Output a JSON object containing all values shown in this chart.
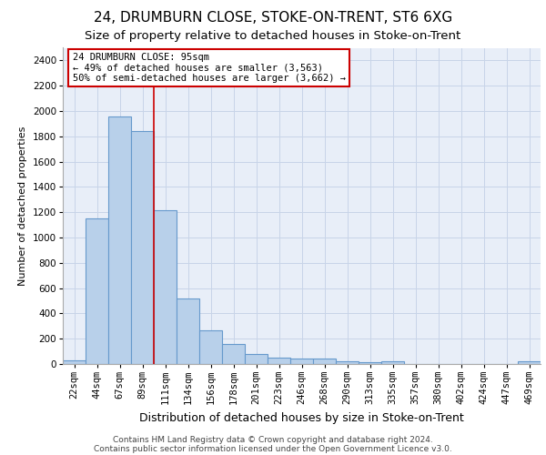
{
  "title1": "24, DRUMBURN CLOSE, STOKE-ON-TRENT, ST6 6XG",
  "title2": "Size of property relative to detached houses in Stoke-on-Trent",
  "xlabel": "Distribution of detached houses by size in Stoke-on-Trent",
  "ylabel": "Number of detached properties",
  "categories": [
    "22sqm",
    "44sqm",
    "67sqm",
    "89sqm",
    "111sqm",
    "134sqm",
    "156sqm",
    "178sqm",
    "201sqm",
    "223sqm",
    "246sqm",
    "268sqm",
    "290sqm",
    "313sqm",
    "335sqm",
    "357sqm",
    "380sqm",
    "402sqm",
    "424sqm",
    "447sqm",
    "469sqm"
  ],
  "values": [
    30,
    1150,
    1960,
    1840,
    1215,
    515,
    265,
    155,
    80,
    50,
    40,
    40,
    20,
    15,
    20,
    0,
    0,
    0,
    0,
    0,
    20
  ],
  "bar_color": "#b8d0ea",
  "bar_edge_color": "#6699cc",
  "bar_linewidth": 0.8,
  "property_line_color": "#cc0000",
  "annotation_line1": "24 DRUMBURN CLOSE: 95sqm",
  "annotation_line2": "← 49% of detached houses are smaller (3,563)",
  "annotation_line3": "50% of semi-detached houses are larger (3,662) →",
  "annotation_box_color": "#cc0000",
  "ylim": [
    0,
    2500
  ],
  "yticks": [
    0,
    200,
    400,
    600,
    800,
    1000,
    1200,
    1400,
    1600,
    1800,
    2000,
    2200,
    2400
  ],
  "grid_color": "#c8d4e8",
  "background_color": "#e8eef8",
  "footer_line1": "Contains HM Land Registry data © Crown copyright and database right 2024.",
  "footer_line2": "Contains public sector information licensed under the Open Government Licence v3.0.",
  "title1_fontsize": 11,
  "title2_fontsize": 9.5,
  "xlabel_fontsize": 9,
  "ylabel_fontsize": 8,
  "tick_fontsize": 7.5,
  "footer_fontsize": 6.5,
  "annot_fontsize": 7.5
}
